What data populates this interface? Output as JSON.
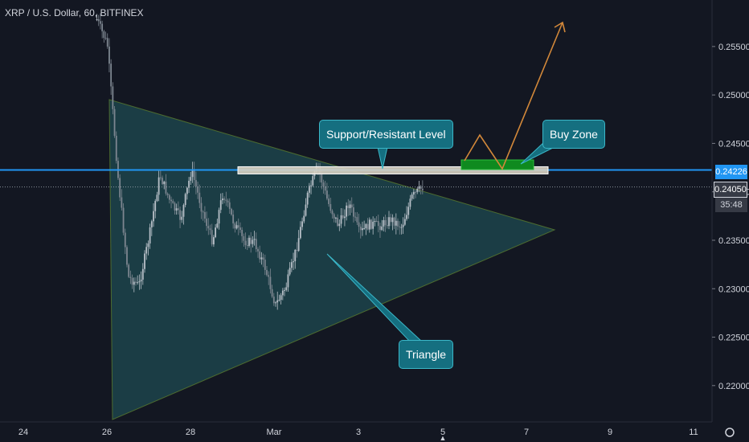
{
  "chart_data": {
    "type": "candlestick",
    "title": "XRP / U.S. Dollar, 60, BITFINEX",
    "x_ticks": [
      "24",
      "26",
      "28",
      "Mar",
      "3",
      "5",
      "7",
      "9",
      "11"
    ],
    "y_ticks": [
      "0.22000",
      "0.22500",
      "0.23000",
      "0.23500",
      "0.24000",
      "0.24500",
      "0.25000",
      "0.25500"
    ],
    "ylim": [
      0.2165,
      0.2598
    ],
    "grid": false,
    "price_labels": {
      "level": "0.24226",
      "last": "0.24050",
      "countdown": "35:48"
    },
    "level_price": 0.24226,
    "last_price": 0.2405,
    "x_data": [
      "2019-02-25T18:00",
      "2019-02-26T00:00",
      "2019-02-26T06:00",
      "2019-02-26T12:00",
      "2019-02-26T18:00",
      "2019-02-27T00:00",
      "2019-02-27T06:00",
      "2019-02-27T12:00",
      "2019-02-27T18:00",
      "2019-02-28T00:00",
      "2019-02-28T06:00",
      "2019-02-28T12:00",
      "2019-02-28T18:00",
      "2019-03-01T00:00",
      "2019-03-01T06:00",
      "2019-03-01T12:00",
      "2019-03-01T18:00",
      "2019-03-02T00:00",
      "2019-03-02T06:00",
      "2019-03-02T12:00",
      "2019-03-02T18:00",
      "2019-03-03T00:00",
      "2019-03-03T06:00",
      "2019-03-03T12:00",
      "2019-03-03T18:00",
      "2019-03-04T00:00",
      "2019-03-04T06:00",
      "2019-03-04T12:00",
      "2019-03-04T18:00",
      "2019-03-05T00:00",
      "2019-03-05T06:00",
      "2019-03-05T12:00"
    ],
    "close": [
      0.2578,
      0.2552,
      0.2417,
      0.2312,
      0.2303,
      0.2355,
      0.2418,
      0.2389,
      0.2372,
      0.2423,
      0.2382,
      0.2349,
      0.2399,
      0.2369,
      0.2349,
      0.2348,
      0.2322,
      0.2283,
      0.2302,
      0.2342,
      0.2395,
      0.2426,
      0.2389,
      0.2365,
      0.2389,
      0.2357,
      0.2367,
      0.2365,
      0.2372,
      0.2364,
      0.2395,
      0.2405
    ],
    "annotations": {
      "labels": [
        "Support/Resistant Level",
        "Buy Zone",
        "Triangle"
      ]
    },
    "colors": {
      "background": "#131722",
      "up": "#26a69a",
      "down": "#ef5350",
      "candle": "#9aa4ad",
      "level_line": "#2196f3",
      "triangle_fill": "#1f4b52",
      "triangle_stroke": "#4c6b30",
      "callout_bg": "#156f80",
      "buy_zone": "#0f8a1f",
      "arrow": "#d2883a"
    }
  }
}
